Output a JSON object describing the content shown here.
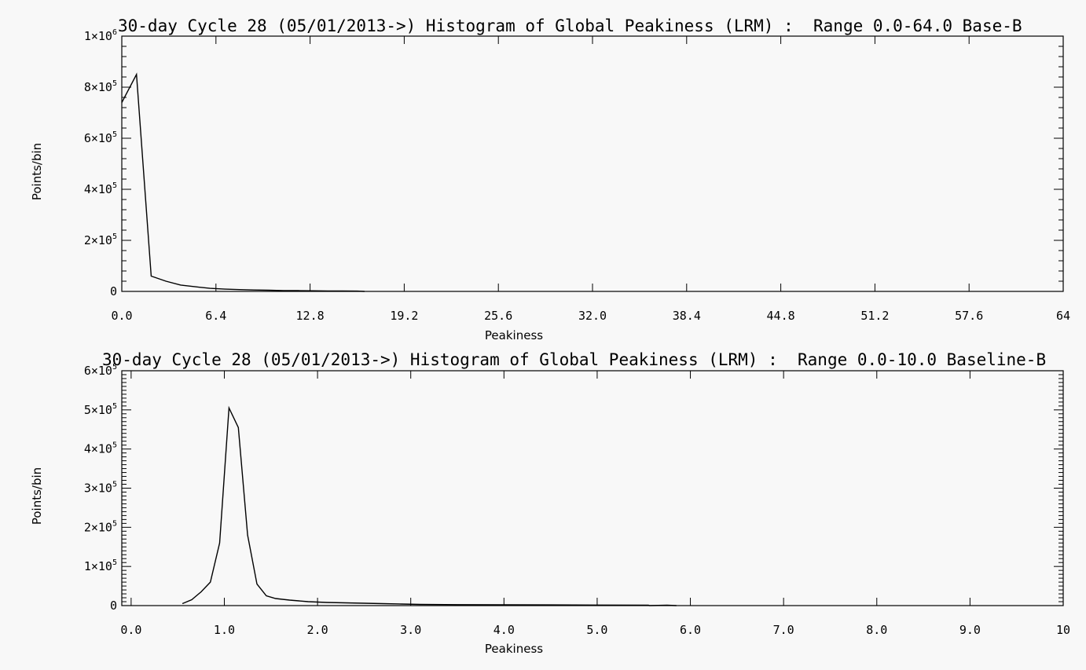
{
  "chart_data": [
    {
      "type": "line",
      "title": "30-day Cycle 28 (05/01/2013->) Histogram of Global Peakiness (LRM) :  Range 0.0-64.0 Base-B",
      "xlabel": "Peakiness",
      "ylabel": "Points/bin",
      "xlim": [
        0,
        64
      ],
      "ylim": [
        0,
        1000000
      ],
      "grid": false,
      "x_ticks": [
        0,
        6.4,
        12.8,
        19.2,
        25.6,
        32.0,
        38.4,
        44.8,
        51.2,
        57.6,
        64
      ],
      "x_tick_labels": [
        "0.0",
        "6.4",
        "12.8",
        "19.2",
        "25.6",
        "32.0",
        "38.4",
        "44.8",
        "51.2",
        "57.6",
        "64"
      ],
      "y_ticks": [
        0,
        200000,
        400000,
        600000,
        800000,
        1000000
      ],
      "y_tick_labels": [
        {
          "mant": "0",
          "exp": ""
        },
        {
          "mant": "2×10",
          "exp": "5"
        },
        {
          "mant": "4×10",
          "exp": "5"
        },
        {
          "mant": "6×10",
          "exp": "5"
        },
        {
          "mant": "8×10",
          "exp": "5"
        },
        {
          "mant": "1×10",
          "exp": "6"
        }
      ],
      "y_minor_per_major": 4,
      "x_minor_per_major": 0,
      "series": [
        {
          "x": [
            0,
            1.0,
            2.0,
            3.0,
            4.0,
            5.0,
            6.0,
            7.0,
            8.0,
            9.0,
            10.0,
            11.0,
            12.0,
            13.0,
            14.0,
            15.0,
            16.0,
            16.5
          ],
          "y": [
            740000,
            850000,
            60000,
            40000,
            25000,
            18000,
            12000,
            9000,
            7000,
            5500,
            4500,
            3500,
            3000,
            2500,
            2000,
            1500,
            1200,
            0
          ]
        }
      ]
    },
    {
      "type": "line",
      "title": "30-day Cycle 28 (05/01/2013->) Histogram of Global Peakiness (LRM) :  Range 0.0-10.0 Baseline-B",
      "xlabel": "Peakiness",
      "ylabel": "Points/bin",
      "xlim": [
        -0.1,
        10
      ],
      "ylim": [
        0,
        600000
      ],
      "grid": false,
      "x_ticks": [
        0,
        1,
        2,
        3,
        4,
        5,
        6,
        7,
        8,
        9,
        10
      ],
      "x_tick_labels": [
        "0.0",
        "1.0",
        "2.0",
        "3.0",
        "4.0",
        "5.0",
        "6.0",
        "7.0",
        "8.0",
        "9.0",
        "10"
      ],
      "y_ticks": [
        0,
        100000,
        200000,
        300000,
        400000,
        500000,
        600000
      ],
      "y_tick_labels": [
        {
          "mant": "0",
          "exp": ""
        },
        {
          "mant": "1×10",
          "exp": "5"
        },
        {
          "mant": "2×10",
          "exp": "5"
        },
        {
          "mant": "3×10",
          "exp": "5"
        },
        {
          "mant": "4×10",
          "exp": "5"
        },
        {
          "mant": "5×10",
          "exp": "5"
        },
        {
          "mant": "6×10",
          "exp": "5"
        }
      ],
      "y_minor_per_major": 9,
      "x_minor_per_major": 0,
      "series": [
        {
          "x": [
            0.55,
            0.65,
            0.75,
            0.85,
            0.95,
            1.05,
            1.15,
            1.25,
            1.35,
            1.45,
            1.55,
            1.7,
            1.9,
            2.1,
            2.3,
            2.5,
            2.7,
            2.9,
            3.1,
            3.5,
            4.0,
            4.5,
            5.0,
            5.55,
            5.56,
            5.75,
            5.85
          ],
          "y": [
            5000,
            15000,
            35000,
            60000,
            160000,
            505000,
            455000,
            180000,
            55000,
            25000,
            18000,
            14000,
            10000,
            8000,
            7000,
            6000,
            5000,
            4000,
            3000,
            2500,
            2000,
            1800,
            1500,
            1200,
            0,
            1000,
            0
          ]
        }
      ]
    }
  ]
}
